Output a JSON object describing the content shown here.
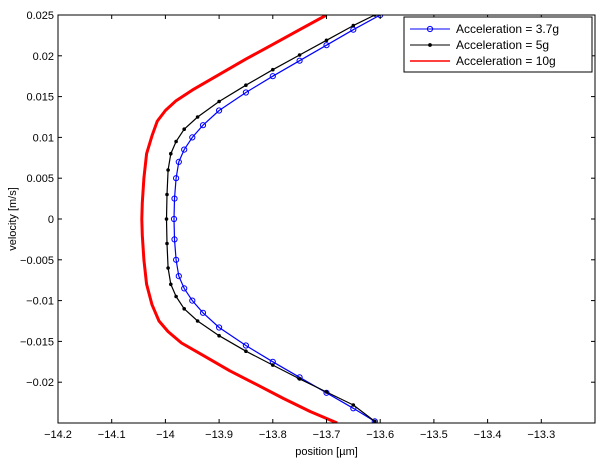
{
  "chart_data": {
    "type": "line",
    "title": "",
    "xlabel": "position [µm]",
    "ylabel": "velocity [m/s]",
    "xlim": [
      -14.2,
      -13.2
    ],
    "ylim": [
      -0.025,
      0.025
    ],
    "xticks": [
      -14.2,
      -14.1,
      -14.0,
      -13.9,
      -13.8,
      -13.7,
      -13.6,
      -13.5,
      -13.4,
      -13.3
    ],
    "xtick_labels": [
      "−14.2",
      "−14.1",
      "−14",
      "−13.9",
      "−13.8",
      "−13.7",
      "−13.6",
      "−13.5",
      "−13.4",
      "−13.3"
    ],
    "yticks": [
      0.025,
      0.02,
      0.015,
      0.01,
      0.005,
      0,
      -0.005,
      -0.01,
      -0.015,
      -0.02
    ],
    "ytick_labels": [
      "0.025",
      "0.02",
      "0.015",
      "0.01",
      "0.005",
      "0",
      "−0.005",
      "−0.01",
      "−0.015",
      "−0.02"
    ],
    "grid": false,
    "legend_position": "top-right",
    "series": [
      {
        "name": "Acceleration = 3.7g",
        "color": "#0000ff",
        "marker": "circle",
        "points": [
          [
            -13.6,
            0.025
          ],
          [
            -13.65,
            0.0232
          ],
          [
            -13.7,
            0.0213
          ],
          [
            -13.75,
            0.0194
          ],
          [
            -13.8,
            0.0175
          ],
          [
            -13.85,
            0.0155
          ],
          [
            -13.9,
            0.0133
          ],
          [
            -13.93,
            0.0115
          ],
          [
            -13.95,
            0.01
          ],
          [
            -13.965,
            0.0085
          ],
          [
            -13.975,
            0.007
          ],
          [
            -13.98,
            0.005
          ],
          [
            -13.983,
            0.0025
          ],
          [
            -13.984,
            0
          ],
          [
            -13.983,
            -0.0025
          ],
          [
            -13.98,
            -0.005
          ],
          [
            -13.975,
            -0.007
          ],
          [
            -13.965,
            -0.0085
          ],
          [
            -13.95,
            -0.01
          ],
          [
            -13.93,
            -0.0115
          ],
          [
            -13.9,
            -0.0133
          ],
          [
            -13.85,
            -0.0155
          ],
          [
            -13.8,
            -0.0175
          ],
          [
            -13.75,
            -0.0194
          ],
          [
            -13.7,
            -0.0213
          ],
          [
            -13.65,
            -0.0232
          ],
          [
            -13.61,
            -0.0248
          ]
        ]
      },
      {
        "name": "Acceleration = 5g",
        "color": "#000000",
        "marker": "dot",
        "points": [
          [
            -13.61,
            0.025
          ],
          [
            -13.65,
            0.0237
          ],
          [
            -13.7,
            0.0219
          ],
          [
            -13.75,
            0.0201
          ],
          [
            -13.8,
            0.0183
          ],
          [
            -13.85,
            0.0164
          ],
          [
            -13.9,
            0.0144
          ],
          [
            -13.94,
            0.0125
          ],
          [
            -13.965,
            0.011
          ],
          [
            -13.98,
            0.0095
          ],
          [
            -13.99,
            0.008
          ],
          [
            -13.995,
            0.006
          ],
          [
            -13.997,
            0.003
          ],
          [
            -13.998,
            0
          ],
          [
            -13.997,
            -0.003
          ],
          [
            -13.995,
            -0.006
          ],
          [
            -13.99,
            -0.008
          ],
          [
            -13.98,
            -0.0095
          ],
          [
            -13.965,
            -0.011
          ],
          [
            -13.94,
            -0.0125
          ],
          [
            -13.9,
            -0.0143
          ],
          [
            -13.85,
            -0.0162
          ],
          [
            -13.8,
            -0.0179
          ],
          [
            -13.75,
            -0.0196
          ],
          [
            -13.7,
            -0.0212
          ],
          [
            -13.65,
            -0.0228
          ],
          [
            -13.61,
            -0.0248
          ]
        ]
      },
      {
        "name": "Acceleration = 10g",
        "color": "#ff0000",
        "marker": "none",
        "points": [
          [
            -13.7,
            0.025
          ],
          [
            -13.75,
            0.0232
          ],
          [
            -13.8,
            0.0214
          ],
          [
            -13.85,
            0.0196
          ],
          [
            -13.9,
            0.0177
          ],
          [
            -13.95,
            0.0158
          ],
          [
            -13.98,
            0.0145
          ],
          [
            -14.0,
            0.0133
          ],
          [
            -14.015,
            0.012
          ],
          [
            -14.025,
            0.0102
          ],
          [
            -14.035,
            0.008
          ],
          [
            -14.04,
            0.005
          ],
          [
            -14.043,
            0.002
          ],
          [
            -14.044,
            0
          ],
          [
            -14.043,
            -0.002
          ],
          [
            -14.04,
            -0.005
          ],
          [
            -14.035,
            -0.008
          ],
          [
            -14.025,
            -0.0105
          ],
          [
            -14.012,
            -0.0125
          ],
          [
            -13.995,
            -0.0138
          ],
          [
            -13.97,
            -0.0152
          ],
          [
            -13.93,
            -0.0167
          ],
          [
            -13.88,
            -0.0186
          ],
          [
            -13.83,
            -0.0203
          ],
          [
            -13.78,
            -0.022
          ],
          [
            -13.73,
            -0.0236
          ],
          [
            -13.68,
            -0.025
          ]
        ]
      }
    ]
  }
}
